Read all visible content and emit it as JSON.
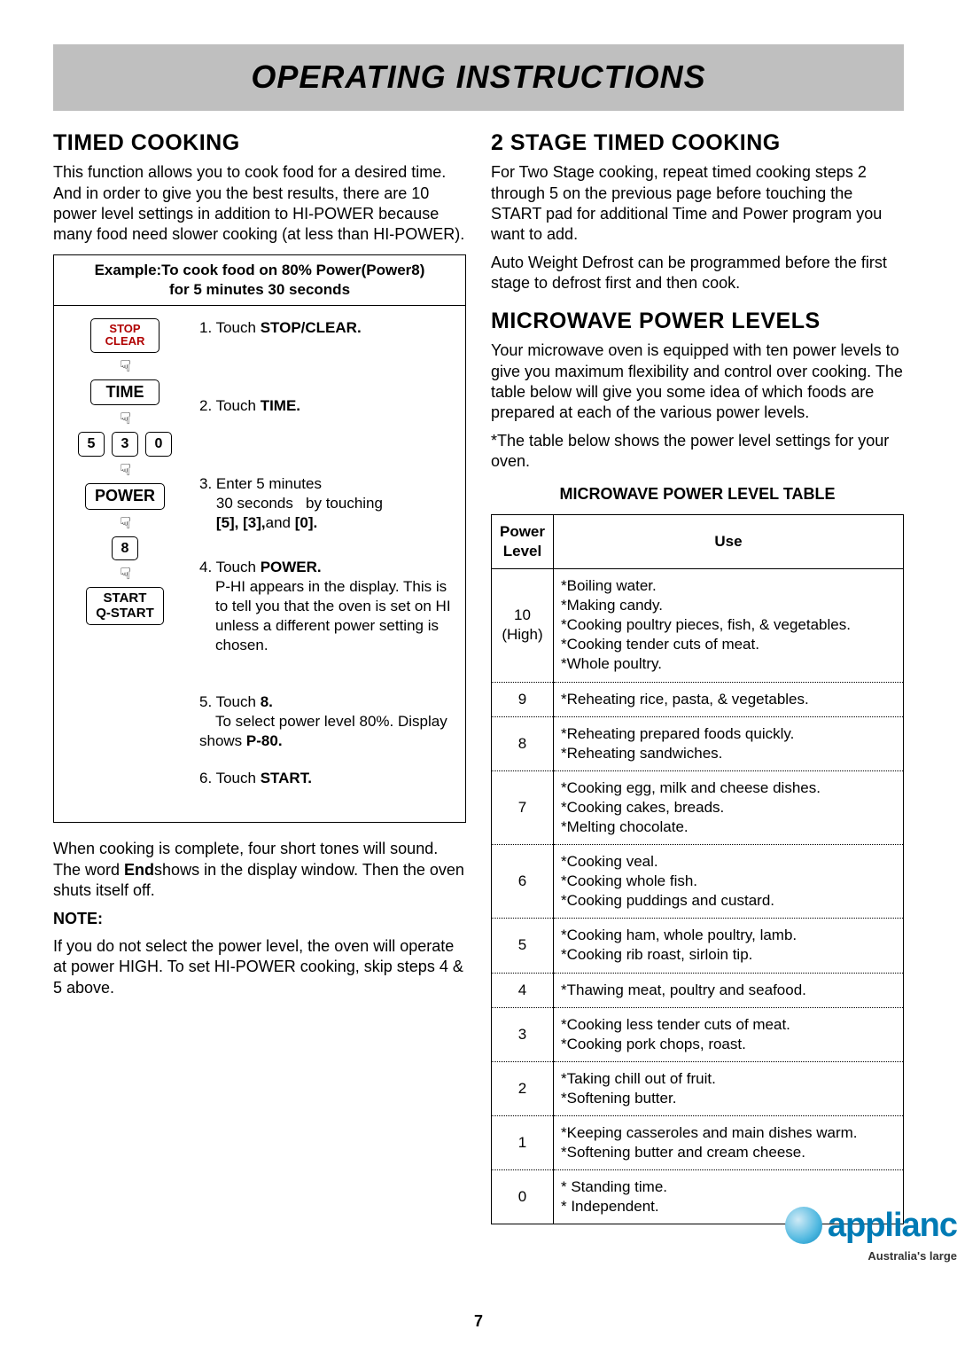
{
  "banner": "OPERATING INSTRUCTIONS",
  "left": {
    "heading": "TIMED COOKING",
    "intro": "This function allows you to cook food for a desired time. And in order to give you the best results, there are 10 power level settings in addition to HI-POWER because many food need slower cooking (at less than HI-POWER).",
    "example_title_l1": "Example:To cook food on 80% Power(Power8)",
    "example_title_l2": "for 5 minutes 30 seconds",
    "buttons": {
      "stop_l1": "STOP",
      "stop_l2": "CLEAR",
      "time": "TIME",
      "d5": "5",
      "d3": "3",
      "d0": "0",
      "power": "POWER",
      "d8": "8",
      "start_l1": "START",
      "start_l2": "Q-START"
    },
    "steps": {
      "s1a": "1. Touch ",
      "s1b": "STOP/CLEAR.",
      "s2a": "2. Touch ",
      "s2b": "TIME.",
      "s3a": "3. Enter 5 minutes",
      "s3b": "    30 seconds   by touching",
      "s3c": "[5], [3],",
      "s3d": "and ",
      "s3e": "[0].",
      "s4a": "4. Touch ",
      "s4b": "POWER.",
      "s4c": "P-HI appears in the display. This is to tell you that the oven is set on HI unless a different power setting is chosen.",
      "s5a": "5. Touch ",
      "s5b": "8.",
      "s5c": "To select power level 80%. Display shows ",
      "s5d": "P-80.",
      "s6a": "6. Touch ",
      "s6b": "START."
    },
    "aftertext_a": "When cooking is complete, four short tones will sound. The word ",
    "aftertext_b": "End",
    "aftertext_c": "shows in the display window. Then the oven shuts itself off.",
    "note_label": "NOTE:",
    "note_text": "If you do not select the power level, the oven will operate at power HIGH. To set HI-POWER cooking, skip steps 4 & 5 above."
  },
  "right": {
    "stage_heading": "2 STAGE TIMED COOKING",
    "stage_p1": "For Two Stage cooking, repeat timed cooking steps 2 through 5 on the previous page before touching the START pad for additional Time and Power program you want to add.",
    "stage_p2": "Auto Weight Defrost can be programmed before the first stage to defrost first and then cook.",
    "levels_heading": "MICROWAVE POWER LEVELS",
    "levels_p1": "Your microwave oven is equipped with ten power levels to give you maximum flexibility and control over cooking. The table below will give you some idea of which foods are prepared at each of the various power levels.",
    "levels_p2": "*The table below shows the power level settings for  your oven.",
    "table_title": "MICROWAVE POWER LEVEL TABLE",
    "th1": "Power Level",
    "th2": "Use",
    "rows": [
      {
        "level": "10\n(High)",
        "use": "*Boiling water.\n*Making candy.\n*Cooking poultry pieces, fish, & vegetables.\n*Cooking tender cuts of meat.\n*Whole poultry."
      },
      {
        "level": "9",
        "use": "*Reheating rice, pasta, & vegetables."
      },
      {
        "level": "8",
        "use": "*Reheating prepared foods quickly.\n*Reheating sandwiches."
      },
      {
        "level": "7",
        "use": "*Cooking egg, milk and cheese dishes.\n*Cooking cakes, breads.\n*Melting chocolate."
      },
      {
        "level": "6",
        "use": "*Cooking veal.\n*Cooking whole fish.\n*Cooking puddings and custard."
      },
      {
        "level": "5",
        "use": "*Cooking ham, whole poultry, lamb.\n*Cooking rib roast, sirloin tip."
      },
      {
        "level": "4",
        "use": "*Thawing meat, poultry and seafood."
      },
      {
        "level": "3",
        "use": "*Cooking less tender cuts of meat.\n*Cooking pork chops, roast."
      },
      {
        "level": "2",
        "use": "*Taking chill out of fruit.\n*Softening butter."
      },
      {
        "level": "1",
        "use": "*Keeping casseroles and main dishes warm.\n*Softening butter and cream cheese."
      },
      {
        "level": "0",
        "use": "* Standing time.\n* Independent."
      }
    ]
  },
  "page_number": "7",
  "watermark": {
    "brand": "applianc",
    "tagline": "Australia's large"
  }
}
